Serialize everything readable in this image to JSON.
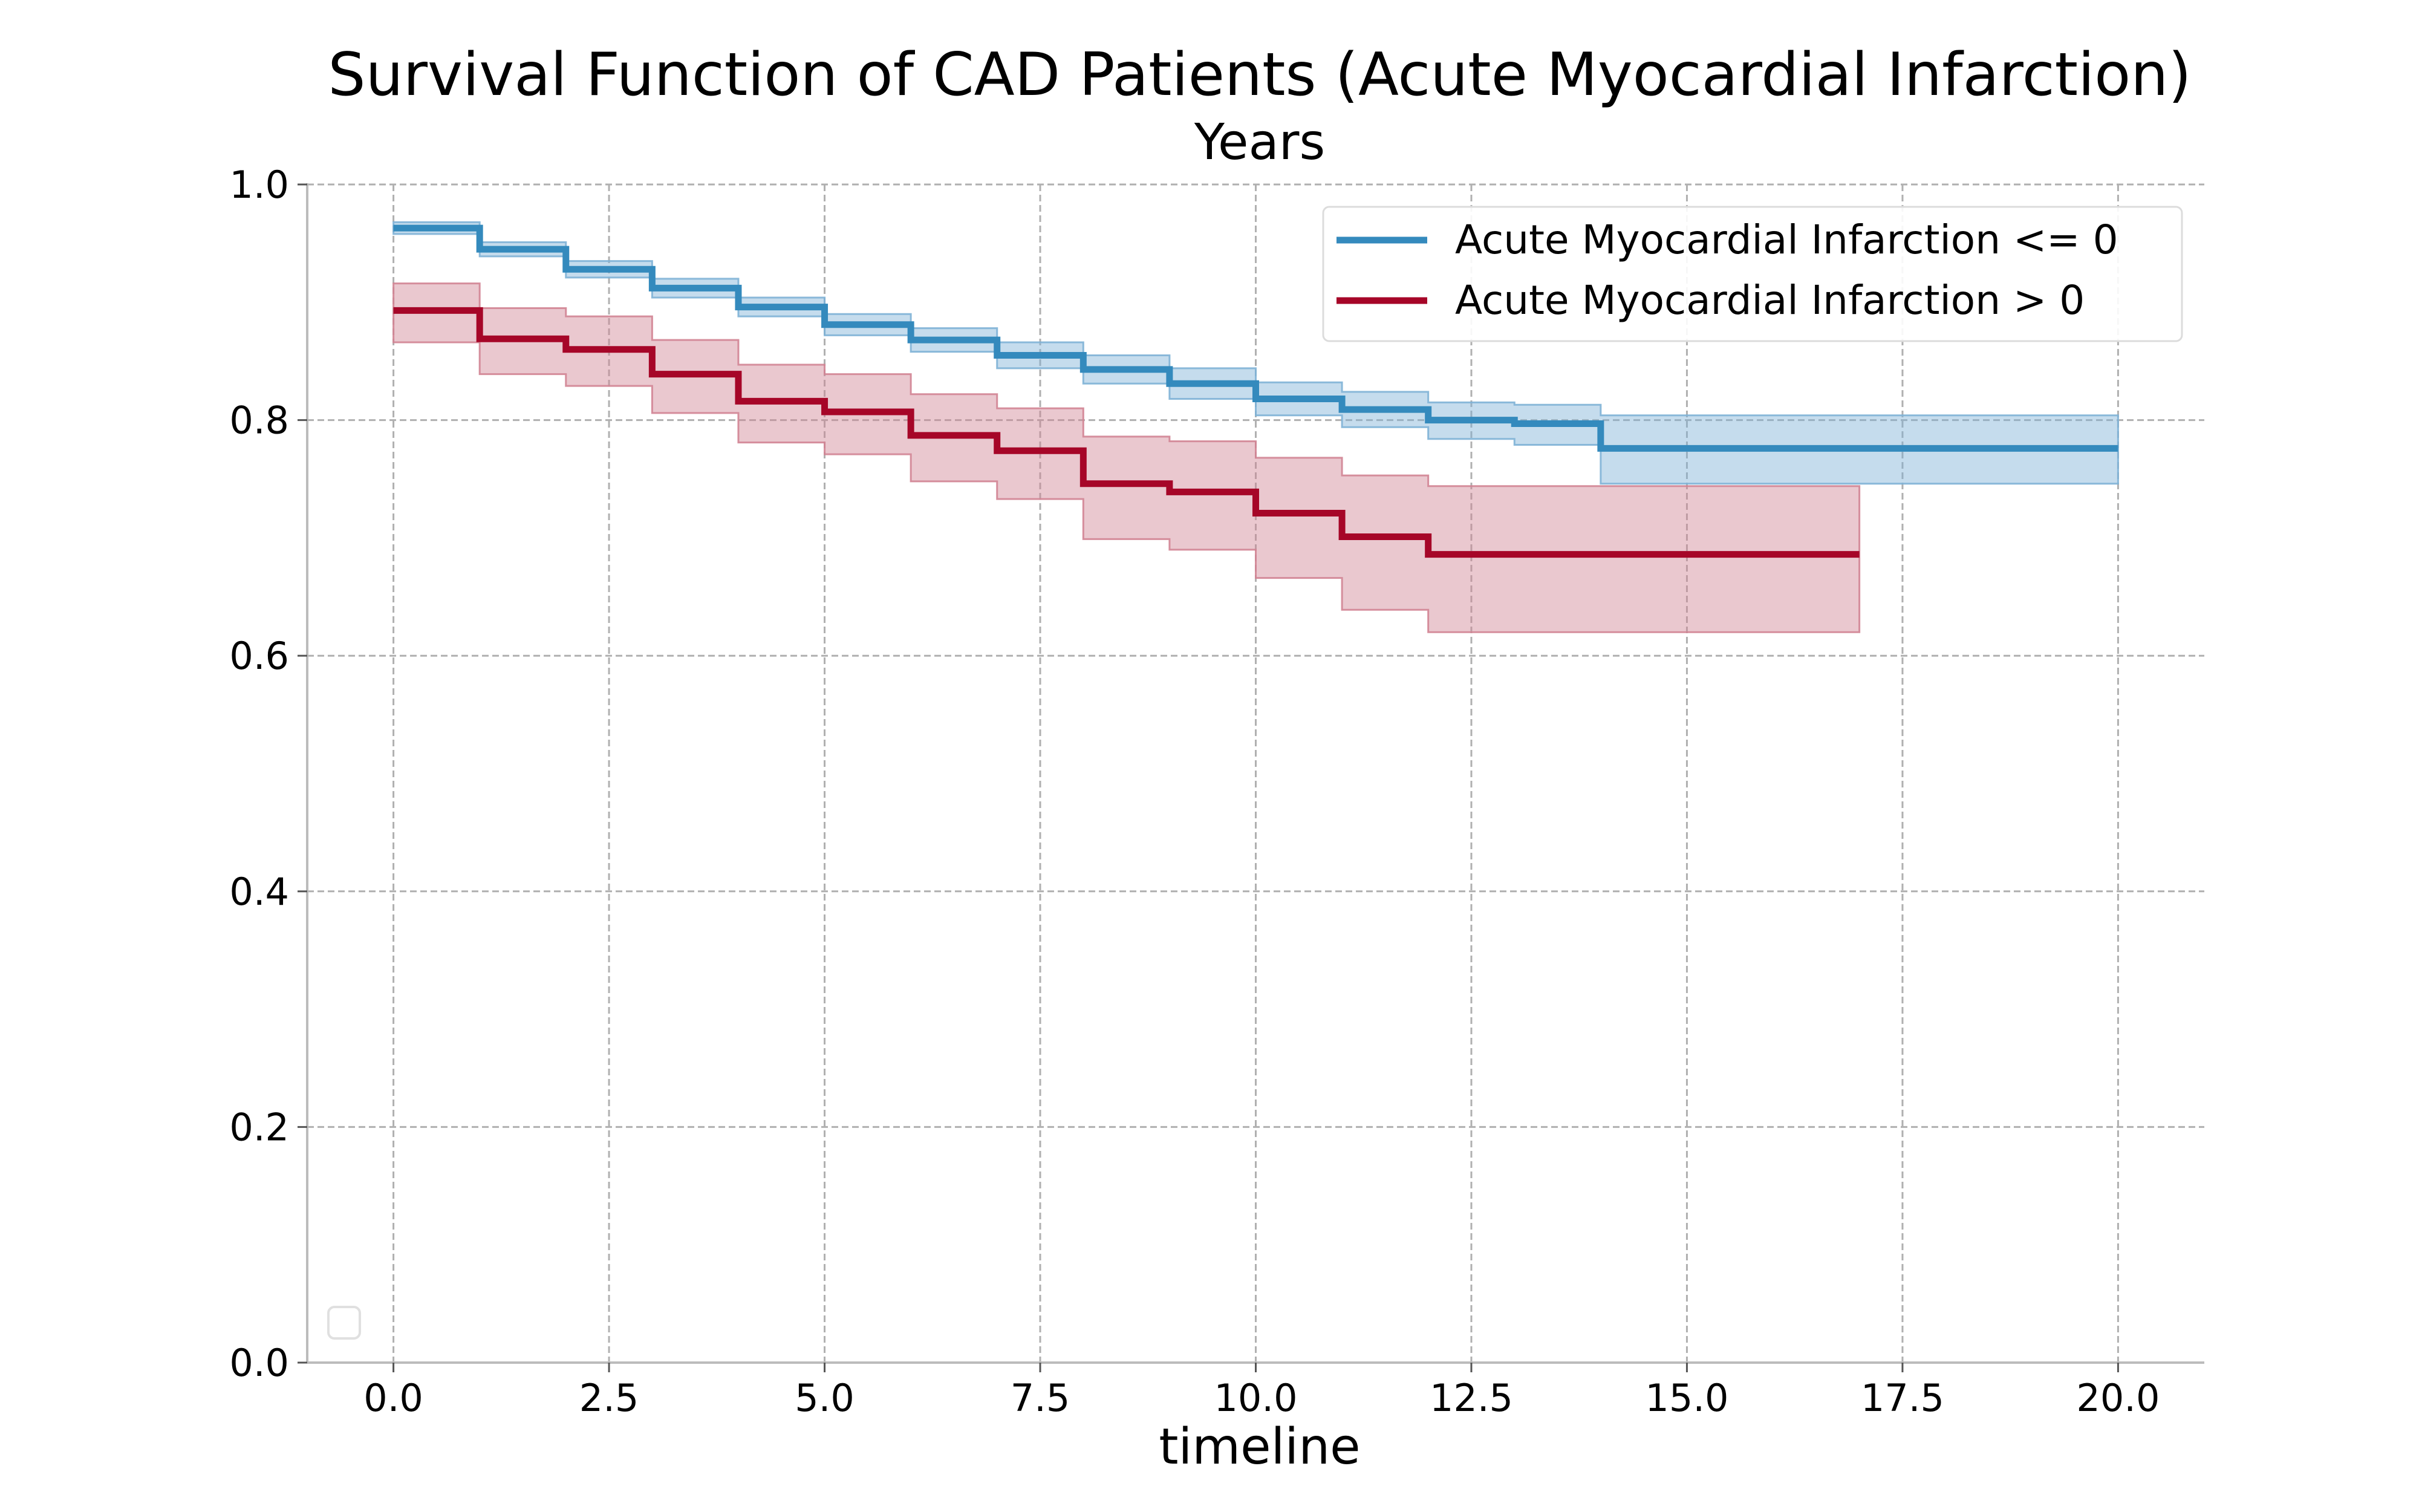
{
  "chart_data": {
    "type": "line",
    "step": true,
    "title": "Survival Function of CAD Patients (Acute Myocardial Infarction)",
    "subtitle": "Years",
    "xlabel": "timeline",
    "ylabel": "",
    "xlim": [
      -1.0,
      21.0
    ],
    "ylim": [
      0.0,
      1.0
    ],
    "xticks": [
      0.0,
      2.5,
      5.0,
      7.5,
      10.0,
      12.5,
      15.0,
      17.5,
      20.0
    ],
    "xtick_labels": [
      "0.0",
      "2.5",
      "5.0",
      "7.5",
      "10.0",
      "12.5",
      "15.0",
      "17.5",
      "20.0"
    ],
    "yticks": [
      0.0,
      0.2,
      0.4,
      0.6,
      0.8,
      1.0
    ],
    "ytick_labels": [
      "0.0",
      "0.2",
      "0.4",
      "0.6",
      "0.8",
      "1.0"
    ],
    "grid": true,
    "legend_position": "top-right",
    "series": [
      {
        "name": "Acute Myocardial Infarction <= 0",
        "color": "#348ABD",
        "band_color": "#7FB2D6",
        "x": [
          0,
          1,
          2,
          3,
          4,
          5,
          6,
          7,
          8,
          9,
          10,
          11,
          12,
          13,
          14,
          20
        ],
        "y": [
          0.963,
          0.945,
          0.928,
          0.912,
          0.896,
          0.881,
          0.868,
          0.855,
          0.843,
          0.831,
          0.818,
          0.809,
          0.8,
          0.797,
          0.776,
          0.776
        ],
        "lower": [
          0.958,
          0.939,
          0.921,
          0.904,
          0.888,
          0.872,
          0.858,
          0.844,
          0.831,
          0.818,
          0.804,
          0.794,
          0.784,
          0.779,
          0.746,
          0.746
        ],
        "upper": [
          0.968,
          0.951,
          0.935,
          0.92,
          0.904,
          0.89,
          0.878,
          0.866,
          0.855,
          0.844,
          0.832,
          0.824,
          0.815,
          0.813,
          0.804,
          0.804
        ]
      },
      {
        "name": "Acute Myocardial Infarction > 0",
        "color": "#A60628",
        "band_color": "#D18494",
        "x": [
          0,
          1,
          2,
          3,
          4,
          5,
          6,
          7,
          8,
          9,
          10,
          11,
          12,
          17
        ],
        "y": [
          0.893,
          0.869,
          0.86,
          0.839,
          0.816,
          0.807,
          0.787,
          0.774,
          0.746,
          0.739,
          0.721,
          0.701,
          0.686,
          0.686
        ],
        "lower": [
          0.866,
          0.839,
          0.829,
          0.806,
          0.781,
          0.771,
          0.748,
          0.733,
          0.699,
          0.69,
          0.666,
          0.639,
          0.62,
          0.62
        ],
        "upper": [
          0.916,
          0.895,
          0.888,
          0.868,
          0.847,
          0.839,
          0.822,
          0.81,
          0.786,
          0.782,
          0.768,
          0.753,
          0.744,
          0.744
        ]
      }
    ]
  }
}
